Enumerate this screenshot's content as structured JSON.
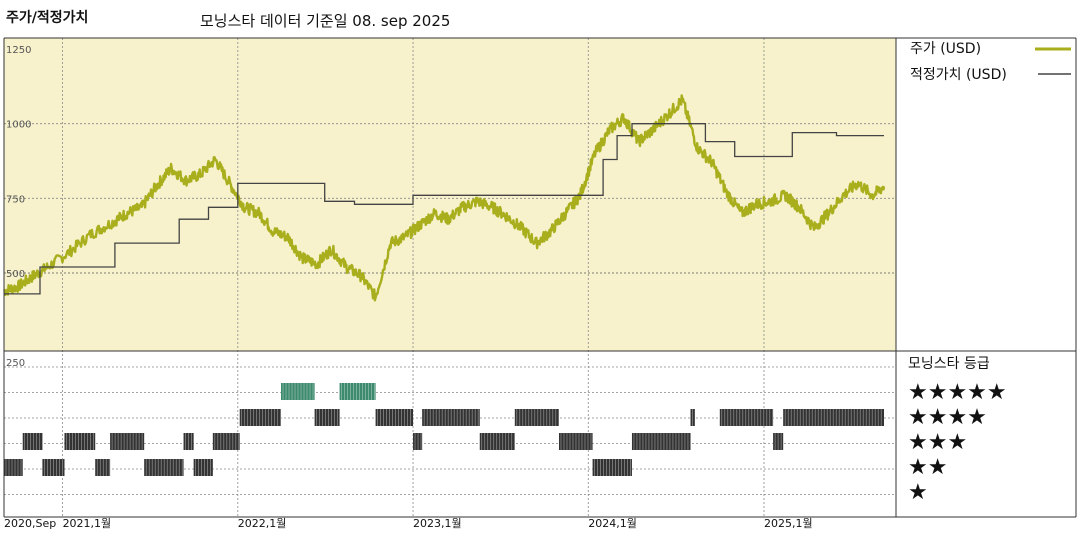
{
  "header": {
    "title": "주가/적정가치",
    "subtitle": "모닝스타 데이터 기준일 08. sep 2025"
  },
  "legend": {
    "price_label": "주가 (USD)",
    "fair_label": "적정가치 (USD)",
    "rating_title": "모닝스타 등급",
    "stars": [
      "★★★★★",
      "★★★★",
      "★★★",
      "★★",
      "★"
    ]
  },
  "colors": {
    "plot_bg": "#f7f2cc",
    "price": "#a8ae1c",
    "fair": "#444444",
    "rating_bar": "#333333",
    "rating_bar_5": "#3d8a6e"
  },
  "chart_data": {
    "type": "line",
    "title": "주가/적정가치",
    "subtitle": "모닝스타 데이터 기준일 08. sep 2025",
    "x_range": [
      "2020-09-01",
      "2025-09-08"
    ],
    "x_ticks": [
      {
        "date": "2020-09-01",
        "label": "2020,Sep"
      },
      {
        "date": "2021-01-01",
        "label": "2021,1월"
      },
      {
        "date": "2022-01-01",
        "label": "2022,1월"
      },
      {
        "date": "2023-01-01",
        "label": "2023,1월"
      },
      {
        "date": "2024-01-01",
        "label": "2024,1월"
      },
      {
        "date": "2025-01-01",
        "label": "2025,1월"
      }
    ],
    "y_range": [
      250,
      1250
    ],
    "y_ticks": [
      250,
      500,
      750,
      1000,
      1250
    ],
    "grid": true,
    "legend_position": "right",
    "series": [
      {
        "name": "주가 (USD)",
        "points": [
          [
            "2020-09-01",
            440
          ],
          [
            "2020-10-01",
            455
          ],
          [
            "2020-11-01",
            490
          ],
          [
            "2020-12-01",
            520
          ],
          [
            "2021-01-15",
            570
          ],
          [
            "2021-03-01",
            630
          ],
          [
            "2021-04-15",
            670
          ],
          [
            "2021-05-15",
            700
          ],
          [
            "2021-06-15",
            720
          ],
          [
            "2021-07-15",
            790
          ],
          [
            "2021-08-15",
            850
          ],
          [
            "2021-09-15",
            810
          ],
          [
            "2021-10-15",
            830
          ],
          [
            "2021-11-15",
            880
          ],
          [
            "2021-12-15",
            800
          ],
          [
            "2022-01-15",
            720
          ],
          [
            "2022-02-15",
            700
          ],
          [
            "2022-03-15",
            640
          ],
          [
            "2022-04-15",
            620
          ],
          [
            "2022-05-15",
            550
          ],
          [
            "2022-06-15",
            530
          ],
          [
            "2022-07-15",
            580
          ],
          [
            "2022-08-15",
            520
          ],
          [
            "2022-09-15",
            490
          ],
          [
            "2022-10-15",
            420
          ],
          [
            "2022-11-15",
            600
          ],
          [
            "2022-12-15",
            620
          ],
          [
            "2023-01-15",
            660
          ],
          [
            "2023-02-15",
            700
          ],
          [
            "2023-03-15",
            680
          ],
          [
            "2023-04-15",
            720
          ],
          [
            "2023-05-15",
            740
          ],
          [
            "2023-06-15",
            720
          ],
          [
            "2023-07-15",
            690
          ],
          [
            "2023-08-15",
            650
          ],
          [
            "2023-09-15",
            600
          ],
          [
            "2023-10-15",
            640
          ],
          [
            "2023-11-15",
            700
          ],
          [
            "2023-12-15",
            760
          ],
          [
            "2024-01-15",
            900
          ],
          [
            "2024-02-15",
            980
          ],
          [
            "2024-03-15",
            1020
          ],
          [
            "2024-04-15",
            940
          ],
          [
            "2024-05-15",
            980
          ],
          [
            "2024-06-15",
            1030
          ],
          [
            "2024-07-15",
            1080
          ],
          [
            "2024-08-15",
            920
          ],
          [
            "2024-09-15",
            870
          ],
          [
            "2024-10-15",
            770
          ],
          [
            "2024-11-15",
            700
          ],
          [
            "2024-12-15",
            730
          ],
          [
            "2025-01-15",
            740
          ],
          [
            "2025-02-15",
            760
          ],
          [
            "2025-03-15",
            720
          ],
          [
            "2025-04-15",
            650
          ],
          [
            "2025-05-15",
            700
          ],
          [
            "2025-06-15",
            760
          ],
          [
            "2025-07-15",
            800
          ],
          [
            "2025-08-15",
            760
          ],
          [
            "2025-09-08",
            790
          ]
        ]
      },
      {
        "name": "적정가치 (USD)",
        "step": true,
        "points": [
          [
            "2020-09-01",
            430
          ],
          [
            "2020-10-01",
            430
          ],
          [
            "2020-11-15",
            520
          ],
          [
            "2021-04-01",
            520
          ],
          [
            "2021-04-20",
            600
          ],
          [
            "2021-09-01",
            680
          ],
          [
            "2021-11-01",
            720
          ],
          [
            "2022-01-01",
            800
          ],
          [
            "2022-06-01",
            800
          ],
          [
            "2022-07-01",
            740
          ],
          [
            "2022-09-01",
            730
          ],
          [
            "2023-01-01",
            760
          ],
          [
            "2023-12-01",
            760
          ],
          [
            "2024-02-01",
            880
          ],
          [
            "2024-03-01",
            960
          ],
          [
            "2024-04-01",
            1000
          ],
          [
            "2024-07-01",
            1000
          ],
          [
            "2024-09-01",
            940
          ],
          [
            "2024-11-01",
            890
          ],
          [
            "2025-03-01",
            970
          ],
          [
            "2025-05-01",
            970
          ],
          [
            "2025-06-01",
            960
          ],
          [
            "2025-09-08",
            960
          ]
        ]
      }
    ],
    "ratings": {
      "levels": [
        "★★★★★",
        "★★★★",
        "★★★",
        "★★",
        "★"
      ],
      "periods": [
        {
          "stars": 2,
          "start": "2020-09-01",
          "end": "2020-10-10"
        },
        {
          "stars": 3,
          "start": "2020-10-10",
          "end": "2020-11-20"
        },
        {
          "stars": 2,
          "start": "2020-11-20",
          "end": "2021-01-05"
        },
        {
          "stars": 3,
          "start": "2021-01-05",
          "end": "2021-03-10"
        },
        {
          "stars": 2,
          "start": "2021-03-10",
          "end": "2021-04-10"
        },
        {
          "stars": 3,
          "start": "2021-04-10",
          "end": "2021-06-20"
        },
        {
          "stars": 2,
          "start": "2021-06-20",
          "end": "2021-09-10"
        },
        {
          "stars": 3,
          "start": "2021-09-10",
          "end": "2021-10-01"
        },
        {
          "stars": 2,
          "start": "2021-10-01",
          "end": "2021-11-10"
        },
        {
          "stars": 3,
          "start": "2021-11-10",
          "end": "2022-01-05"
        },
        {
          "stars": 4,
          "start": "2022-01-05",
          "end": "2022-04-01"
        },
        {
          "stars": 5,
          "start": "2022-04-01",
          "end": "2022-06-10"
        },
        {
          "stars": 4,
          "start": "2022-06-10",
          "end": "2022-08-01"
        },
        {
          "stars": 5,
          "start": "2022-08-01",
          "end": "2022-10-15"
        },
        {
          "stars": 4,
          "start": "2022-10-15",
          "end": "2023-01-01"
        },
        {
          "stars": 3,
          "start": "2023-01-01",
          "end": "2023-01-20"
        },
        {
          "stars": 4,
          "start": "2023-01-20",
          "end": "2023-05-20"
        },
        {
          "stars": 3,
          "start": "2023-05-20",
          "end": "2023-08-01"
        },
        {
          "stars": 4,
          "start": "2023-08-01",
          "end": "2023-11-01"
        },
        {
          "stars": 3,
          "start": "2023-11-01",
          "end": "2024-01-10"
        },
        {
          "stars": 2,
          "start": "2024-01-10",
          "end": "2024-04-01"
        },
        {
          "stars": 3,
          "start": "2024-04-01",
          "end": "2024-08-01"
        },
        {
          "stars": 4,
          "start": "2024-08-01",
          "end": "2024-08-10"
        },
        {
          "stars": 4,
          "start": "2024-10-01",
          "end": "2025-01-20"
        },
        {
          "stars": 3,
          "start": "2025-01-20",
          "end": "2025-02-10"
        },
        {
          "stars": 4,
          "start": "2025-02-10",
          "end": "2025-09-08"
        }
      ]
    }
  }
}
